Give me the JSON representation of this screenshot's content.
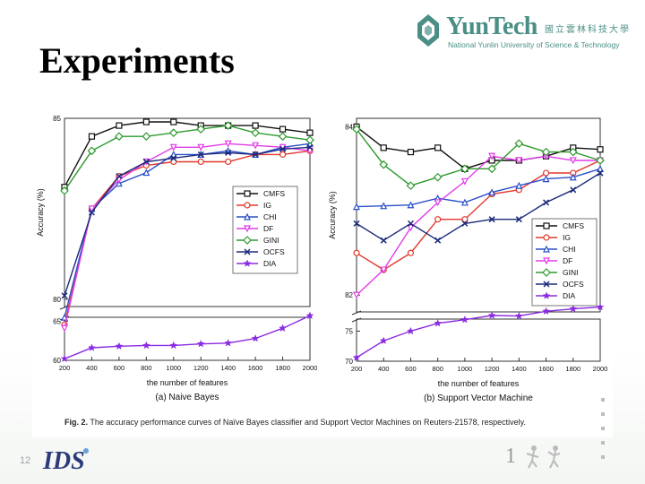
{
  "slide": {
    "title": "Experiments",
    "page_number": "12"
  },
  "logo": {
    "main": "YunTech",
    "chinese": "國立雲林科技大學",
    "subtitle": "National Yunlin University of Science & Technology",
    "footer_text": "IDS"
  },
  "colors": {
    "CMFS": "#111111",
    "IG": "#e0382c",
    "CHI": "#2a4fc9",
    "DF": "#e23ce8",
    "GINI": "#2f9a2f",
    "OCFS": "#1b2a7a",
    "DIA": "#8a2be2",
    "logo_teal": "#4a8f86"
  },
  "caption": {
    "label": "Fig. 2.",
    "text": "The accuracy performance curves of Naïve Bayes classifier and Support Vector Machines on Reuters-21578, respectively."
  },
  "chart_data": [
    {
      "type": "line",
      "title": "(a) Naive Bayes",
      "xlabel": "the number of features",
      "ylabel": "Accuracy (%)",
      "x": [
        200,
        400,
        600,
        800,
        1000,
        1200,
        1400,
        1600,
        1800,
        2000
      ],
      "xticks": [
        "200",
        "400",
        "600",
        "800",
        "1000",
        "1200",
        "1400",
        "1600",
        "1800",
        "2000"
      ],
      "upper_panel": {
        "ylim": [
          79.8,
          85
        ],
        "yticks": [
          "80",
          "85"
        ]
      },
      "lower_panel": {
        "ylim": [
          60,
          65.5
        ],
        "yticks": [
          "60",
          "65"
        ]
      },
      "series": [
        {
          "name": "CMFS",
          "values": [
            83.1,
            84.5,
            84.8,
            84.9,
            84.9,
            84.8,
            84.8,
            84.8,
            84.7,
            84.6
          ]
        },
        {
          "name": "IG",
          "values": [
            79.3,
            82.5,
            83.4,
            83.7,
            83.8,
            83.8,
            83.8,
            84.0,
            84.0,
            84.1
          ]
        },
        {
          "name": "CHI",
          "values": [
            79.5,
            82.5,
            83.2,
            83.5,
            84.0,
            84.0,
            84.1,
            84.0,
            84.2,
            84.3
          ]
        },
        {
          "name": "DF",
          "values": [
            79.2,
            82.5,
            83.3,
            83.8,
            84.2,
            84.2,
            84.3,
            84.25,
            84.2,
            84.1
          ]
        },
        {
          "name": "GINI",
          "values": [
            83.0,
            84.1,
            84.5,
            84.5,
            84.6,
            84.7,
            84.8,
            84.6,
            84.5,
            84.4
          ]
        },
        {
          "name": "OCFS",
          "values": [
            80.1,
            82.4,
            83.4,
            83.8,
            83.9,
            84.0,
            84.05,
            84.0,
            84.15,
            84.2
          ]
        },
        {
          "name": "DIA",
          "values": [
            60.2,
            61.6,
            61.8,
            61.9,
            61.9,
            62.1,
            62.2,
            62.8,
            64.1,
            65.7
          ]
        }
      ]
    },
    {
      "type": "line",
      "title": "(b) Support Vector Machine",
      "xlabel": "the number of features",
      "ylabel": "Accuracy (%)",
      "x": [
        200,
        400,
        600,
        800,
        1000,
        1200,
        1400,
        1600,
        1800,
        2000
      ],
      "xticks": [
        "200",
        "400",
        "600",
        "800",
        "1000",
        "1200",
        "1400",
        "1600",
        "1800",
        "2000"
      ],
      "upper_panel": {
        "ylim": [
          81.8,
          84.1
        ],
        "yticks": [
          "82",
          "84"
        ]
      },
      "lower_panel": {
        "ylim": [
          70,
          77
        ],
        "yticks": [
          "70",
          "75"
        ]
      },
      "series": [
        {
          "name": "CMFS",
          "values": [
            84.0,
            83.75,
            83.7,
            83.75,
            83.5,
            83.6,
            83.6,
            83.65,
            83.75,
            83.73
          ]
        },
        {
          "name": "IG",
          "values": [
            82.5,
            82.3,
            82.5,
            82.9,
            82.9,
            83.2,
            83.25,
            83.45,
            83.45,
            83.6
          ]
        },
        {
          "name": "CHI",
          "values": [
            83.05,
            83.06,
            83.07,
            83.15,
            83.1,
            83.22,
            83.3,
            83.38,
            83.4,
            83.5
          ]
        },
        {
          "name": "DF",
          "values": [
            82.0,
            82.3,
            82.8,
            83.1,
            83.35,
            83.65,
            83.6,
            83.65,
            83.6,
            83.6
          ]
        },
        {
          "name": "GINI",
          "values": [
            83.97,
            83.55,
            83.3,
            83.4,
            83.5,
            83.5,
            83.8,
            83.7,
            83.7,
            83.6
          ]
        },
        {
          "name": "OCFS",
          "values": [
            82.85,
            82.65,
            82.85,
            82.65,
            82.85,
            82.9,
            82.9,
            83.1,
            83.25,
            83.45
          ]
        },
        {
          "name": "DIA",
          "values": [
            70.6,
            73.4,
            75.0,
            76.3,
            76.9,
            77.6,
            77.5,
            78.3,
            78.7,
            79.0
          ]
        }
      ]
    }
  ]
}
